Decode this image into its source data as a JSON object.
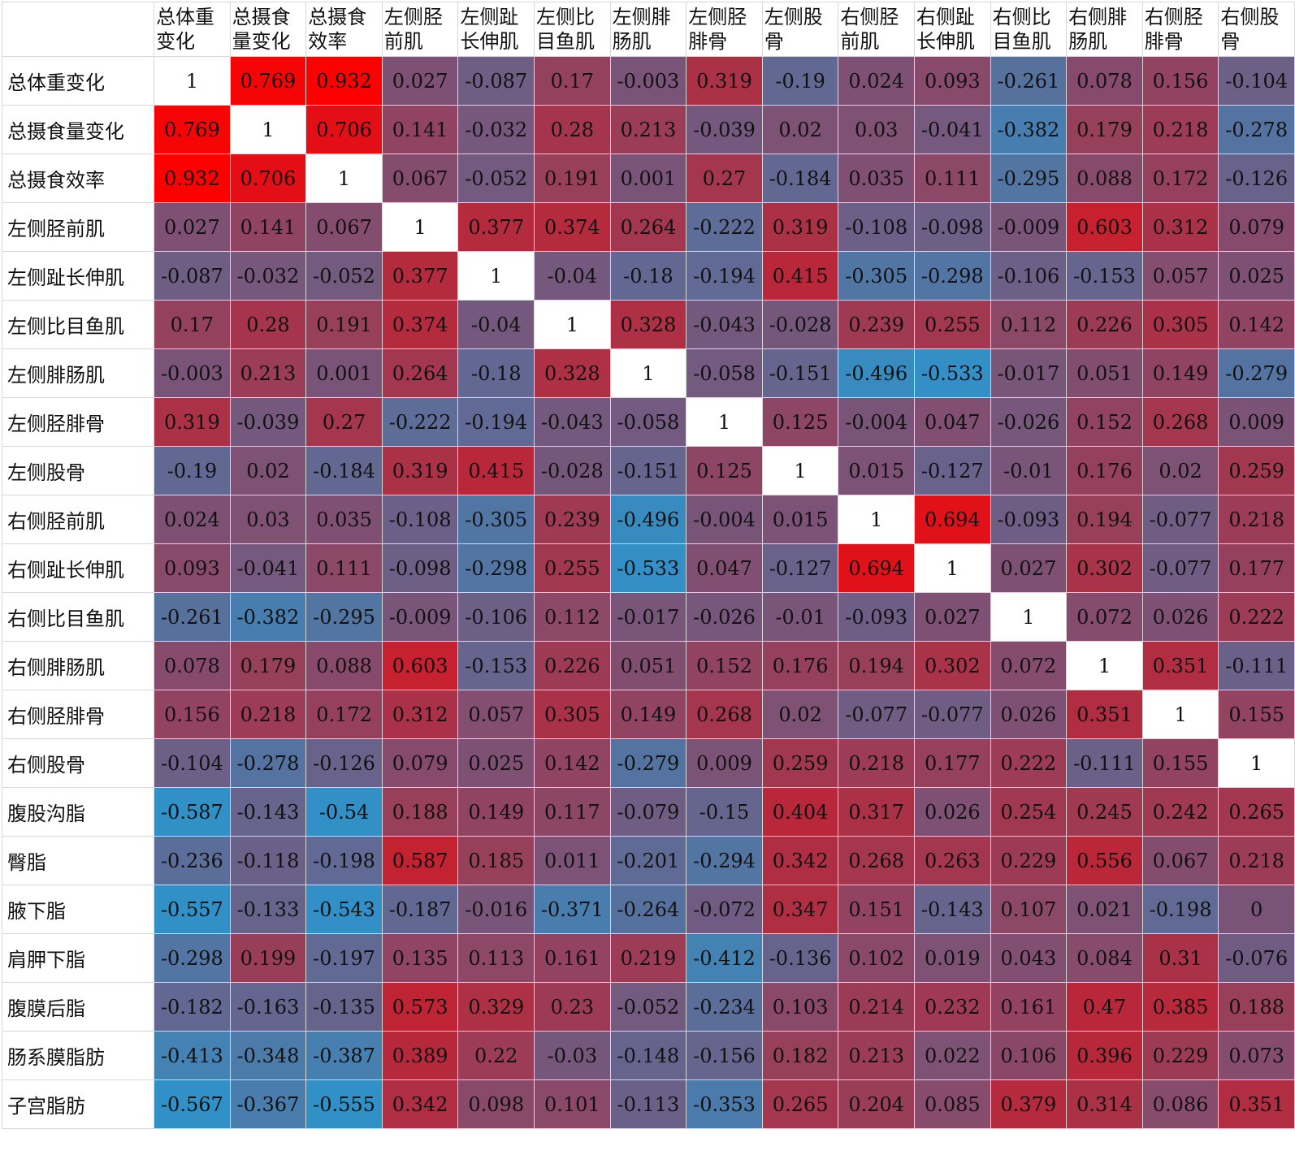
{
  "chart_data": {
    "type": "heatmap",
    "columns": [
      "总体重变化",
      "总摄食量变化",
      "总摄食效率",
      "左侧胫前肌",
      "左侧趾长伸肌",
      "左侧比目鱼肌",
      "左侧腓肠肌",
      "左侧胫腓骨",
      "左侧股骨",
      "右侧胫前肌",
      "右侧趾长伸肌",
      "右侧比目鱼肌",
      "右侧腓肠肌",
      "右侧胫腓骨",
      "右侧股骨"
    ],
    "rows": [
      "总体重变化",
      "总摄食量变化",
      "总摄食效率",
      "左侧胫前肌",
      "左侧趾长伸肌",
      "左侧比目鱼肌",
      "左侧腓肠肌",
      "左侧胫腓骨",
      "左侧股骨",
      "右侧胫前肌",
      "右侧趾长伸肌",
      "右侧比目鱼肌",
      "右侧腓肠肌",
      "右侧胫腓骨",
      "右侧股骨",
      "腹股沟脂",
      "臀脂",
      "腋下脂",
      "肩胛下脂",
      "腹膜后脂",
      "肠系膜脂肪",
      "子宫脂肪"
    ],
    "values": [
      [
        "1",
        "0.769",
        "0.932",
        "0.027",
        "-0.087",
        "0.17",
        "-0.003",
        "0.319",
        "-0.19",
        "0.024",
        "0.093",
        "-0.261",
        "0.078",
        "0.156",
        "-0.104"
      ],
      [
        "0.769",
        "1",
        "0.706",
        "0.141",
        "-0.032",
        "0.28",
        "0.213",
        "-0.039",
        "0.02",
        "0.03",
        "-0.041",
        "-0.382",
        "0.179",
        "0.218",
        "-0.278"
      ],
      [
        "0.932",
        "0.706",
        "1",
        "0.067",
        "-0.052",
        "0.191",
        "0.001",
        "0.27",
        "-0.184",
        "0.035",
        "0.111",
        "-0.295",
        "0.088",
        "0.172",
        "-0.126"
      ],
      [
        "0.027",
        "0.141",
        "0.067",
        "1",
        "0.377",
        "0.374",
        "0.264",
        "-0.222",
        "0.319",
        "-0.108",
        "-0.098",
        "-0.009",
        "0.603",
        "0.312",
        "0.079"
      ],
      [
        "-0.087",
        "-0.032",
        "-0.052",
        "0.377",
        "1",
        "-0.04",
        "-0.18",
        "-0.194",
        "0.415",
        "-0.305",
        "-0.298",
        "-0.106",
        "-0.153",
        "0.057",
        "0.025"
      ],
      [
        "0.17",
        "0.28",
        "0.191",
        "0.374",
        "-0.04",
        "1",
        "0.328",
        "-0.043",
        "-0.028",
        "0.239",
        "0.255",
        "0.112",
        "0.226",
        "0.305",
        "0.142"
      ],
      [
        "-0.003",
        "0.213",
        "0.001",
        "0.264",
        "-0.18",
        "0.328",
        "1",
        "-0.058",
        "-0.151",
        "-0.496",
        "-0.533",
        "-0.017",
        "0.051",
        "0.149",
        "-0.279"
      ],
      [
        "0.319",
        "-0.039",
        "0.27",
        "-0.222",
        "-0.194",
        "-0.043",
        "-0.058",
        "1",
        "0.125",
        "-0.004",
        "0.047",
        "-0.026",
        "0.152",
        "0.268",
        "0.009"
      ],
      [
        "-0.19",
        "0.02",
        "-0.184",
        "0.319",
        "0.415",
        "-0.028",
        "-0.151",
        "0.125",
        "1",
        "0.015",
        "-0.127",
        "-0.01",
        "0.176",
        "0.02",
        "0.259"
      ],
      [
        "0.024",
        "0.03",
        "0.035",
        "-0.108",
        "-0.305",
        "0.239",
        "-0.496",
        "-0.004",
        "0.015",
        "1",
        "0.694",
        "-0.093",
        "0.194",
        "-0.077",
        "0.218"
      ],
      [
        "0.093",
        "-0.041",
        "0.111",
        "-0.098",
        "-0.298",
        "0.255",
        "-0.533",
        "0.047",
        "-0.127",
        "0.694",
        "1",
        "0.027",
        "0.302",
        "-0.077",
        "0.177"
      ],
      [
        "-0.261",
        "-0.382",
        "-0.295",
        "-0.009",
        "-0.106",
        "0.112",
        "-0.017",
        "-0.026",
        "-0.01",
        "-0.093",
        "0.027",
        "1",
        "0.072",
        "0.026",
        "0.222"
      ],
      [
        "0.078",
        "0.179",
        "0.088",
        "0.603",
        "-0.153",
        "0.226",
        "0.051",
        "0.152",
        "0.176",
        "0.194",
        "0.302",
        "0.072",
        "1",
        "0.351",
        "-0.111"
      ],
      [
        "0.156",
        "0.218",
        "0.172",
        "0.312",
        "0.057",
        "0.305",
        "0.149",
        "0.268",
        "0.02",
        "-0.077",
        "-0.077",
        "0.026",
        "0.351",
        "1",
        "0.155"
      ],
      [
        "-0.104",
        "-0.278",
        "-0.126",
        "0.079",
        "0.025",
        "0.142",
        "-0.279",
        "0.009",
        "0.259",
        "0.218",
        "0.177",
        "0.222",
        "-0.111",
        "0.155",
        "1"
      ],
      [
        "-0.587",
        "-0.143",
        "-0.54",
        "0.188",
        "0.149",
        "0.117",
        "-0.079",
        "-0.15",
        "0.404",
        "0.317",
        "0.026",
        "0.254",
        "0.245",
        "0.242",
        "0.265"
      ],
      [
        "-0.236",
        "-0.118",
        "-0.198",
        "0.587",
        "0.185",
        "0.011",
        "-0.201",
        "-0.294",
        "0.342",
        "0.268",
        "0.263",
        "0.229",
        "0.556",
        "0.067",
        "0.218"
      ],
      [
        "-0.557",
        "-0.133",
        "-0.543",
        "-0.187",
        "-0.016",
        "-0.371",
        "-0.264",
        "-0.072",
        "0.347",
        "0.151",
        "-0.143",
        "0.107",
        "0.021",
        "-0.198",
        "0"
      ],
      [
        "-0.298",
        "0.199",
        "-0.197",
        "0.135",
        "0.113",
        "0.161",
        "0.219",
        "-0.412",
        "-0.136",
        "0.102",
        "0.019",
        "0.043",
        "0.084",
        "0.31",
        "-0.076"
      ],
      [
        "-0.182",
        "-0.163",
        "-0.135",
        "0.573",
        "0.329",
        "0.23",
        "-0.052",
        "-0.234",
        "0.103",
        "0.214",
        "0.232",
        "0.161",
        "0.47",
        "0.385",
        "0.188"
      ],
      [
        "-0.413",
        "-0.348",
        "-0.387",
        "0.389",
        "0.22",
        "-0.03",
        "-0.148",
        "-0.156",
        "0.182",
        "0.213",
        "0.022",
        "0.106",
        "0.396",
        "0.229",
        "0.073"
      ],
      [
        "-0.567",
        "-0.367",
        "-0.555",
        "0.342",
        "0.098",
        "0.101",
        "-0.113",
        "-0.353",
        "0.265",
        "0.204",
        "0.085",
        "0.379",
        "0.314",
        "0.086",
        "0.351"
      ]
    ],
    "color_scale": {
      "negative": "#3191c7",
      "neutral": "#7a5478",
      "positive": "#b8283a",
      "strong_positive": "#ff0000",
      "diagonal": "#ffffff"
    }
  }
}
